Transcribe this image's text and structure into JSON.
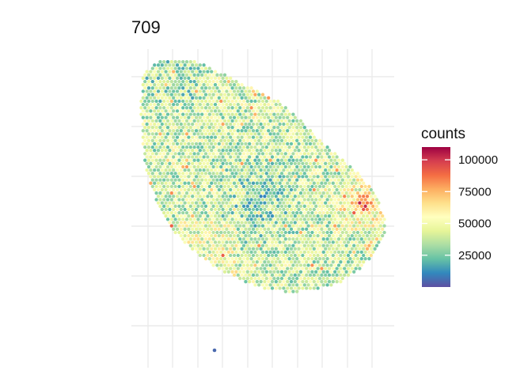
{
  "chart_data": {
    "type": "scatter",
    "title": "709",
    "xlabel": "",
    "ylabel": "",
    "grid": true,
    "legend": {
      "title": "counts",
      "position": "right",
      "ticks": [
        100000,
        75000,
        50000,
        25000
      ],
      "tick_labels": [
        "100000",
        "75000",
        "50000",
        "25000"
      ],
      "range": [
        0,
        110000
      ],
      "colorscale": "Spectral (reversed)",
      "colors": [
        "#5E4FA2",
        "#3288BD",
        "#66C2A5",
        "#ABDDA4",
        "#E6F598",
        "#FFFFBF",
        "#FEE08B",
        "#FDAE61",
        "#F46D43",
        "#D53E4F",
        "#9E0142"
      ]
    },
    "series": [
      {
        "description_type": "spatial spots (hexagonal grid, tissue section)",
        "point_count_approx": 1650,
        "value_range": [
          2000,
          105000
        ],
        "typical_value": 45000,
        "outlier_spot_value": 5000
      }
    ]
  }
}
